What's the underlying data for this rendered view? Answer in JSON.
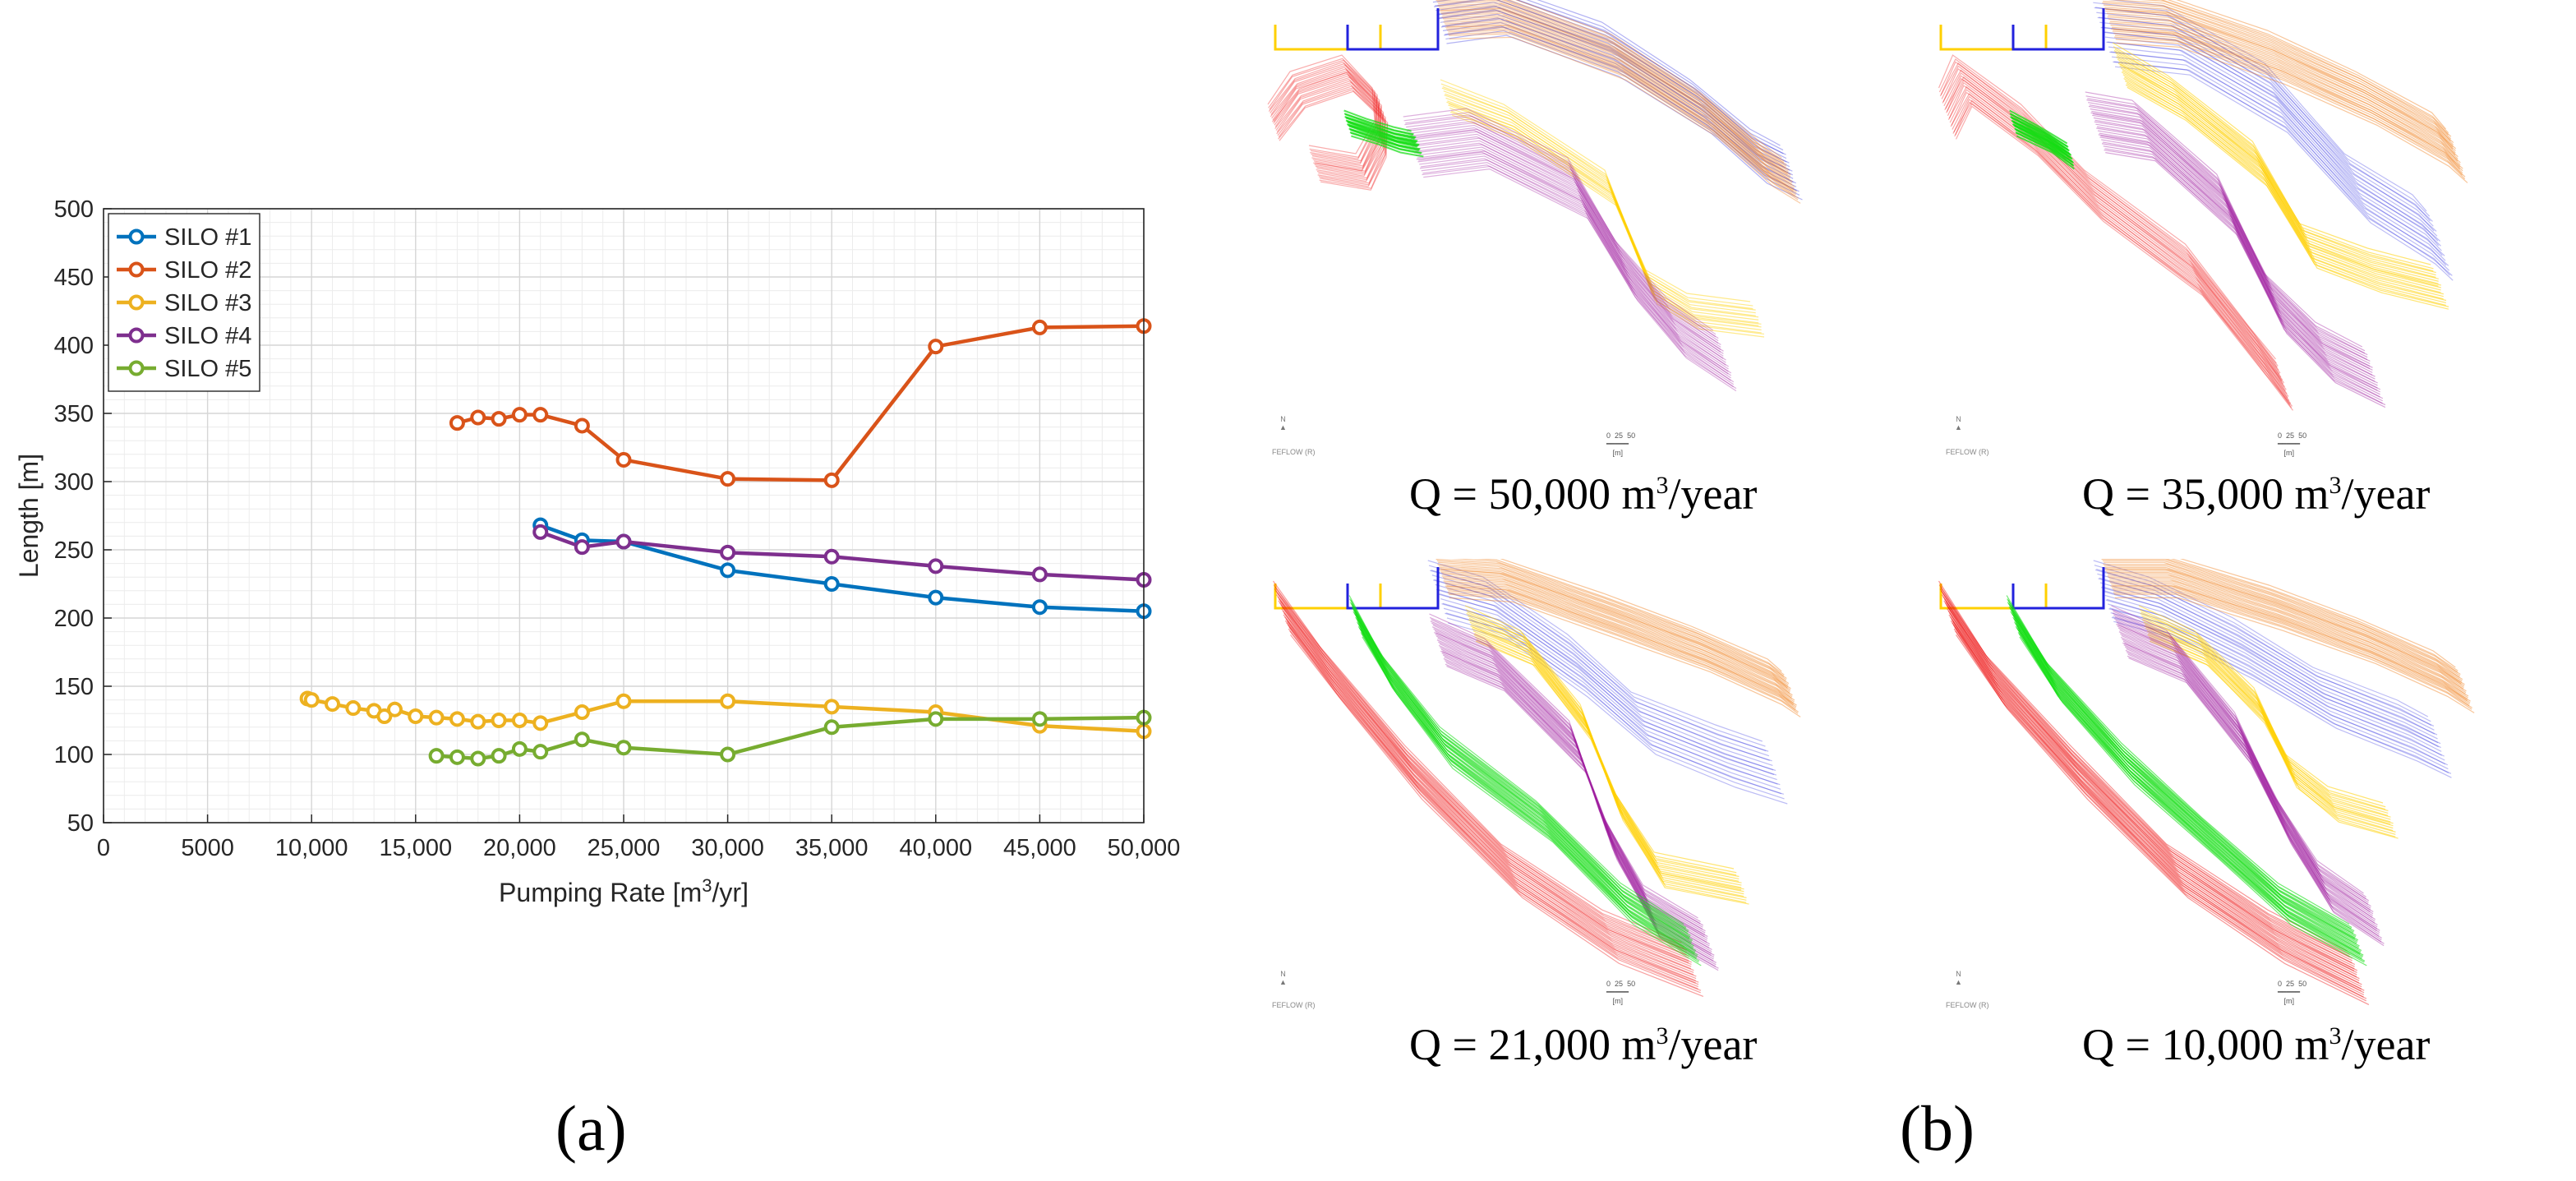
{
  "panel_a_label": "(a)",
  "panel_b_label": "(b)",
  "colors": {
    "silo1": "#0072BD",
    "silo2": "#D95319",
    "silo3": "#EDB120",
    "silo4": "#7E2F8E",
    "silo5": "#77AC30",
    "red": "#EE1111",
    "green": "#11DD11",
    "blue": "#2222DD",
    "yellow": "#FFD000",
    "orange": "#F08020",
    "purple": "#A020A0"
  },
  "chart_data": {
    "type": "line",
    "title": "",
    "xlabel": "Pumping Rate [m3/yr]",
    "ylabel": "Length [m]",
    "xlim": [
      0,
      50000
    ],
    "ylim": [
      50,
      500
    ],
    "grid": true,
    "legend_position": "top-left",
    "x_ticks": [
      0,
      5000,
      10000,
      15000,
      20000,
      25000,
      30000,
      35000,
      40000,
      45000,
      50000
    ],
    "x_tick_labels": [
      "0",
      "5000",
      "10,000",
      "15,000",
      "20,000",
      "25,000",
      "30,000",
      "35,000",
      "40,000",
      "45,000",
      "50,000"
    ],
    "y_ticks": [
      50,
      100,
      150,
      200,
      250,
      300,
      350,
      400,
      450,
      500
    ],
    "y_tick_labels": [
      "50",
      "100",
      "150",
      "200",
      "250",
      "300",
      "350",
      "400",
      "450",
      "500"
    ],
    "series": [
      {
        "name": "SILO #1",
        "color": "#0072BD",
        "x": [
          21000,
          23000,
          25000,
          30000,
          35000,
          40000,
          45000,
          50000
        ],
        "y": [
          268,
          257,
          256,
          235,
          225,
          215,
          208,
          205
        ]
      },
      {
        "name": "SILO #2",
        "color": "#D95319",
        "x": [
          17000,
          18000,
          19000,
          20000,
          21000,
          23000,
          25000,
          30000,
          35000,
          40000,
          45000,
          50000
        ],
        "y": [
          343,
          347,
          346,
          349,
          349,
          341,
          316,
          302,
          301,
          399,
          413,
          414
        ]
      },
      {
        "name": "SILO #3",
        "color": "#EDB120",
        "x": [
          9800,
          10000,
          11000,
          12000,
          13000,
          13500,
          14000,
          15000,
          16000,
          17000,
          18000,
          19000,
          20000,
          21000,
          23000,
          25000,
          30000,
          35000,
          40000,
          45000,
          50000
        ],
        "y": [
          141,
          140,
          137,
          134,
          132,
          128,
          133,
          128,
          127,
          126,
          124,
          125,
          125,
          123,
          131,
          139,
          139,
          135,
          131,
          121,
          117
        ]
      },
      {
        "name": "SILO #4",
        "color": "#7E2F8E",
        "x": [
          21000,
          23000,
          25000,
          30000,
          35000,
          40000,
          45000,
          50000
        ],
        "y": [
          263,
          252,
          256,
          248,
          245,
          238,
          232,
          228
        ]
      },
      {
        "name": "SILO #5",
        "color": "#77AC30",
        "x": [
          16000,
          17000,
          18000,
          19000,
          20000,
          21000,
          23000,
          25000,
          30000,
          35000,
          40000,
          45000,
          50000
        ],
        "y": [
          99,
          98,
          97,
          99,
          104,
          102,
          111,
          105,
          100,
          120,
          126,
          126,
          127
        ]
      }
    ]
  },
  "maps": [
    {
      "caption_prefix": "Q = 50,000 m",
      "caption_sup": "3",
      "caption_suffix": "/year"
    },
    {
      "caption_prefix": "Q = 35,000 m",
      "caption_sup": "3",
      "caption_suffix": "/year"
    },
    {
      "caption_prefix": "Q = 21,000 m",
      "caption_sup": "3",
      "caption_suffix": "/year"
    },
    {
      "caption_prefix": "Q = 10,000 m",
      "caption_sup": "3",
      "caption_suffix": "/year"
    }
  ],
  "map_annotations": {
    "north": "N",
    "feflow": "FEFLOW (R)",
    "scale_ticks": [
      "0",
      "25",
      "50"
    ],
    "scale_unit": "[m]"
  }
}
